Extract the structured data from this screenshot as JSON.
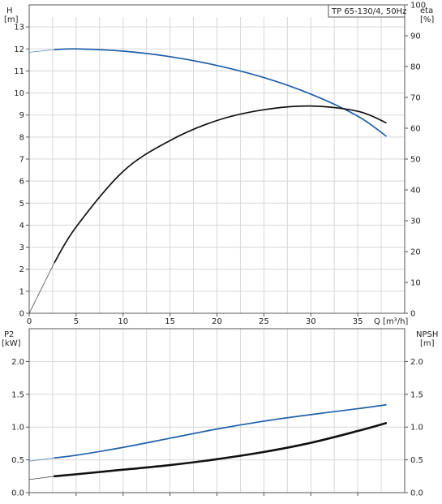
{
  "chart_data": [
    {
      "type": "line",
      "title": "TP 65-130/4, 50Hz",
      "xlabel": "Q [m³/h]",
      "ylabel_left": [
        "H",
        "[m]"
      ],
      "ylabel_right": [
        "eta",
        "[%]"
      ],
      "xlim": [
        0,
        40
      ],
      "ylim_left": [
        0,
        14
      ],
      "ylim_right": [
        0,
        100
      ],
      "x_ticks": [
        0,
        5,
        10,
        15,
        20,
        25,
        30,
        35
      ],
      "y_ticks_left": [
        0,
        1,
        2,
        3,
        4,
        5,
        6,
        7,
        8,
        9,
        10,
        11,
        12,
        13
      ],
      "y_ticks_right": [
        0,
        10,
        20,
        30,
        40,
        50,
        60,
        70,
        80,
        90,
        100
      ],
      "grid": true,
      "series": [
        {
          "axis": "left",
          "color": "#1f5fa8",
          "x": [
            0,
            2.7,
            5,
            10,
            15,
            20,
            25,
            30,
            35,
            38
          ],
          "y": [
            11.85,
            11.97,
            12.0,
            11.9,
            11.65,
            11.25,
            10.7,
            9.95,
            8.95,
            8.05
          ]
        },
        {
          "axis": "right",
          "color": "#111111",
          "x": [
            0,
            2.7,
            5,
            10,
            15,
            20,
            25,
            30,
            35,
            38
          ],
          "y": [
            0,
            16.5,
            28,
            46,
            56,
            62.5,
            66,
            67.2,
            65.5,
            61.8
          ]
        }
      ]
    },
    {
      "type": "line",
      "xlabel": "",
      "ylabel_left": [
        "P2",
        "[kW]"
      ],
      "ylabel_right": [
        "NPSH",
        "[m]"
      ],
      "xlim": [
        0,
        40
      ],
      "ylim_left": [
        0,
        2.5
      ],
      "ylim_right": [
        0,
        2.5
      ],
      "y_ticks_left": [
        "0.0",
        "0.5",
        "1.0",
        "1.5",
        "2.0"
      ],
      "y_ticks_right": [
        "0.0",
        "0.5",
        "1.0",
        "1.5",
        "2.0"
      ],
      "grid": true,
      "series": [
        {
          "axis": "left",
          "color": "#1f5fa8",
          "x": [
            0,
            2.7,
            5,
            10,
            15,
            20,
            25,
            30,
            35,
            38
          ],
          "y": [
            0.48,
            0.53,
            0.57,
            0.69,
            0.83,
            0.97,
            1.09,
            1.19,
            1.28,
            1.34
          ]
        },
        {
          "axis": "right",
          "color": "#111111",
          "x": [
            0,
            2.7,
            5,
            10,
            15,
            20,
            25,
            30,
            35,
            38
          ],
          "y": [
            0.2,
            0.25,
            0.28,
            0.35,
            0.42,
            0.51,
            0.62,
            0.76,
            0.94,
            1.06
          ]
        }
      ]
    }
  ]
}
